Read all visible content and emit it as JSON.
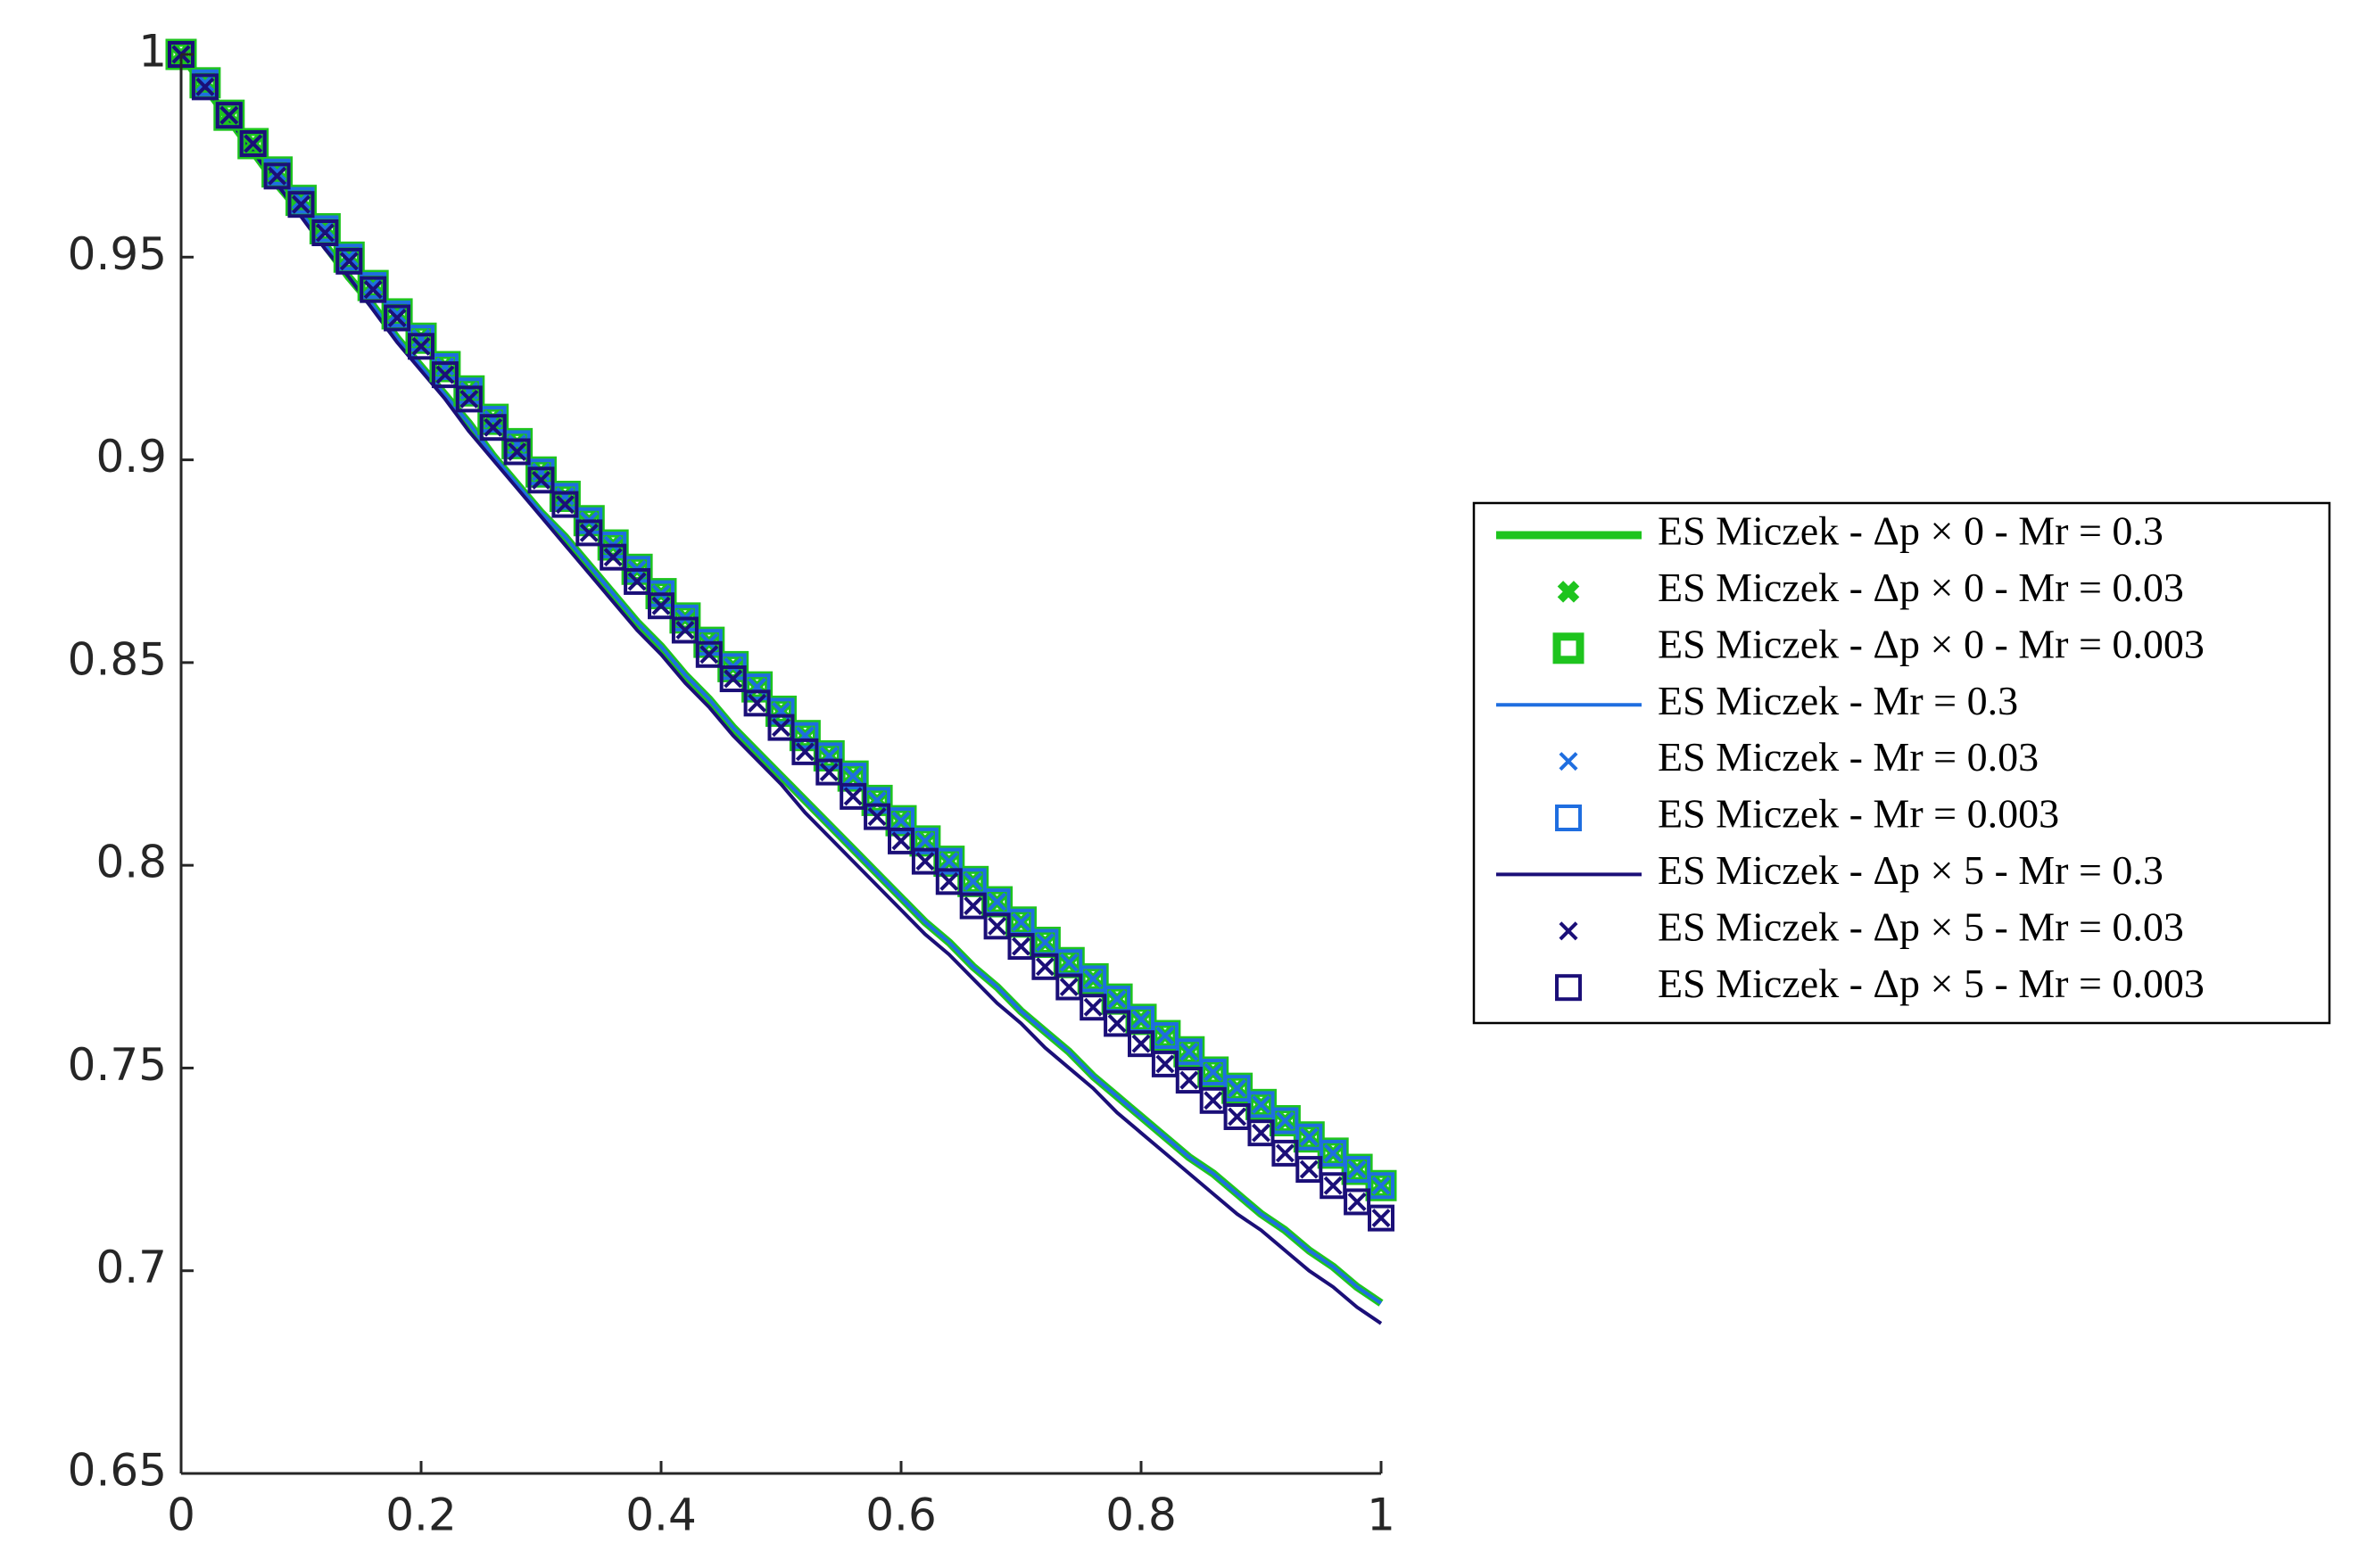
{
  "chart_data": {
    "type": "line",
    "x": [
      0,
      0.02,
      0.04,
      0.06,
      0.08,
      0.1,
      0.12,
      0.14,
      0.16,
      0.18,
      0.2,
      0.22,
      0.24,
      0.26,
      0.28,
      0.3,
      0.32,
      0.34,
      0.36,
      0.38,
      0.4,
      0.42,
      0.44,
      0.46,
      0.48,
      0.5,
      0.52,
      0.54,
      0.56,
      0.58,
      0.6,
      0.62,
      0.64,
      0.66,
      0.68,
      0.7,
      0.72,
      0.74,
      0.76,
      0.78,
      0.8,
      0.82,
      0.84,
      0.86,
      0.88,
      0.9,
      0.92,
      0.94,
      0.96,
      0.98,
      1
    ],
    "xlim": [
      0,
      1
    ],
    "xticks": [
      0,
      0.2,
      0.4,
      0.6,
      0.8,
      1
    ],
    "ylim": [
      0.65,
      1
    ],
    "yticks": [
      0.65,
      0.7,
      0.75,
      0.8,
      0.85,
      0.9,
      0.95,
      1
    ],
    "legend_position": "right",
    "series": [
      {
        "name": "ES Miczek - Δp × 0 - Mr = 0.3",
        "color": "#1ec41e",
        "marker": "line",
        "line_width": 9,
        "values": [
          1,
          0.992,
          0.984,
          0.976,
          0.968,
          0.961,
          0.953,
          0.945,
          0.938,
          0.93,
          0.923,
          0.916,
          0.909,
          0.901,
          0.894,
          0.887,
          0.881,
          0.874,
          0.867,
          0.86,
          0.854,
          0.847,
          0.841,
          0.834,
          0.828,
          0.822,
          0.816,
          0.81,
          0.804,
          0.798,
          0.792,
          0.786,
          0.781,
          0.775,
          0.77,
          0.764,
          0.759,
          0.754,
          0.748,
          0.743,
          0.738,
          0.733,
          0.728,
          0.724,
          0.719,
          0.714,
          0.71,
          0.705,
          0.701,
          0.696,
          0.692
        ]
      },
      {
        "name": "ES Miczek - Δp × 0 - Mr = 0.03",
        "color": "#1ec41e",
        "marker": "x",
        "line_width": 9,
        "values": [
          1,
          0.993,
          0.985,
          0.978,
          0.971,
          0.964,
          0.957,
          0.95,
          0.943,
          0.936,
          0.93,
          0.923,
          0.917,
          0.91,
          0.904,
          0.897,
          0.891,
          0.885,
          0.879,
          0.873,
          0.867,
          0.861,
          0.855,
          0.849,
          0.844,
          0.838,
          0.832,
          0.827,
          0.822,
          0.816,
          0.811,
          0.806,
          0.801,
          0.796,
          0.791,
          0.786,
          0.781,
          0.776,
          0.772,
          0.767,
          0.762,
          0.758,
          0.754,
          0.749,
          0.745,
          0.741,
          0.737,
          0.733,
          0.729,
          0.725,
          0.721
        ]
      },
      {
        "name": "ES Miczek - Δp × 0 - Mr = 0.003",
        "color": "#1ec41e",
        "marker": "square",
        "line_width": 9,
        "values": [
          1,
          0.993,
          0.985,
          0.978,
          0.971,
          0.964,
          0.957,
          0.95,
          0.943,
          0.936,
          0.93,
          0.923,
          0.917,
          0.91,
          0.904,
          0.897,
          0.891,
          0.885,
          0.879,
          0.873,
          0.867,
          0.861,
          0.855,
          0.849,
          0.844,
          0.838,
          0.832,
          0.827,
          0.822,
          0.816,
          0.811,
          0.806,
          0.801,
          0.796,
          0.791,
          0.786,
          0.781,
          0.776,
          0.772,
          0.767,
          0.762,
          0.758,
          0.754,
          0.749,
          0.745,
          0.741,
          0.737,
          0.733,
          0.729,
          0.725,
          0.721
        ]
      },
      {
        "name": "ES Miczek - Mr = 0.3",
        "color": "#1f6ee0",
        "marker": "line",
        "line_width": 4,
        "values": [
          1,
          0.992,
          0.984,
          0.976,
          0.968,
          0.961,
          0.953,
          0.945,
          0.938,
          0.93,
          0.923,
          0.916,
          0.909,
          0.901,
          0.894,
          0.887,
          0.881,
          0.874,
          0.867,
          0.86,
          0.854,
          0.847,
          0.841,
          0.834,
          0.828,
          0.822,
          0.816,
          0.81,
          0.804,
          0.798,
          0.792,
          0.786,
          0.781,
          0.775,
          0.77,
          0.764,
          0.759,
          0.754,
          0.748,
          0.743,
          0.738,
          0.733,
          0.728,
          0.724,
          0.719,
          0.714,
          0.71,
          0.705,
          0.701,
          0.696,
          0.692
        ]
      },
      {
        "name": "ES Miczek - Mr = 0.03",
        "color": "#1f6ee0",
        "marker": "x",
        "line_width": 4,
        "values": [
          1,
          0.993,
          0.985,
          0.978,
          0.971,
          0.964,
          0.957,
          0.95,
          0.943,
          0.936,
          0.93,
          0.923,
          0.917,
          0.91,
          0.904,
          0.897,
          0.891,
          0.885,
          0.879,
          0.873,
          0.867,
          0.861,
          0.855,
          0.849,
          0.844,
          0.838,
          0.832,
          0.827,
          0.822,
          0.816,
          0.811,
          0.806,
          0.801,
          0.796,
          0.791,
          0.786,
          0.781,
          0.776,
          0.772,
          0.767,
          0.762,
          0.758,
          0.754,
          0.749,
          0.745,
          0.741,
          0.737,
          0.733,
          0.729,
          0.725,
          0.721
        ]
      },
      {
        "name": "ES Miczek - Mr = 0.003",
        "color": "#1f6ee0",
        "marker": "square",
        "line_width": 4,
        "values": [
          1,
          0.993,
          0.985,
          0.978,
          0.971,
          0.964,
          0.957,
          0.95,
          0.943,
          0.936,
          0.93,
          0.923,
          0.917,
          0.91,
          0.904,
          0.897,
          0.891,
          0.885,
          0.879,
          0.873,
          0.867,
          0.861,
          0.855,
          0.849,
          0.844,
          0.838,
          0.832,
          0.827,
          0.822,
          0.816,
          0.811,
          0.806,
          0.801,
          0.796,
          0.791,
          0.786,
          0.781,
          0.776,
          0.772,
          0.767,
          0.762,
          0.758,
          0.754,
          0.749,
          0.745,
          0.741,
          0.737,
          0.733,
          0.729,
          0.725,
          0.721
        ]
      },
      {
        "name": "ES Miczek - Δp × 5 - Mr = 0.3",
        "color": "#1b0f78",
        "marker": "line",
        "line_width": 4,
        "values": [
          1,
          0.992,
          0.984,
          0.976,
          0.968,
          0.96,
          0.952,
          0.945,
          0.937,
          0.929,
          0.922,
          0.915,
          0.907,
          0.9,
          0.893,
          0.886,
          0.879,
          0.872,
          0.865,
          0.858,
          0.852,
          0.845,
          0.839,
          0.832,
          0.826,
          0.82,
          0.813,
          0.807,
          0.801,
          0.795,
          0.789,
          0.783,
          0.778,
          0.772,
          0.766,
          0.761,
          0.755,
          0.75,
          0.745,
          0.739,
          0.734,
          0.729,
          0.724,
          0.719,
          0.714,
          0.71,
          0.705,
          0.7,
          0.696,
          0.691,
          0.687
        ]
      },
      {
        "name": "ES Miczek - Δp × 5 - Mr = 0.03",
        "color": "#1b0f78",
        "marker": "x",
        "line_width": 4,
        "values": [
          1,
          0.992,
          0.985,
          0.978,
          0.97,
          0.963,
          0.956,
          0.949,
          0.942,
          0.935,
          0.928,
          0.921,
          0.915,
          0.908,
          0.902,
          0.895,
          0.889,
          0.882,
          0.876,
          0.87,
          0.864,
          0.858,
          0.852,
          0.846,
          0.84,
          0.834,
          0.828,
          0.823,
          0.817,
          0.812,
          0.806,
          0.801,
          0.796,
          0.79,
          0.785,
          0.78,
          0.775,
          0.77,
          0.765,
          0.761,
          0.756,
          0.751,
          0.747,
          0.742,
          0.738,
          0.734,
          0.729,
          0.725,
          0.721,
          0.717,
          0.713
        ]
      },
      {
        "name": "ES Miczek - Δp × 5 - Mr = 0.003",
        "color": "#1b0f78",
        "marker": "square",
        "line_width": 4,
        "values": [
          1,
          0.992,
          0.985,
          0.978,
          0.97,
          0.963,
          0.956,
          0.949,
          0.942,
          0.935,
          0.928,
          0.921,
          0.915,
          0.908,
          0.902,
          0.895,
          0.889,
          0.882,
          0.876,
          0.87,
          0.864,
          0.858,
          0.852,
          0.846,
          0.84,
          0.834,
          0.828,
          0.823,
          0.817,
          0.812,
          0.806,
          0.801,
          0.796,
          0.79,
          0.785,
          0.78,
          0.775,
          0.77,
          0.765,
          0.761,
          0.756,
          0.751,
          0.747,
          0.742,
          0.738,
          0.734,
          0.729,
          0.725,
          0.721,
          0.717,
          0.713
        ]
      }
    ]
  }
}
